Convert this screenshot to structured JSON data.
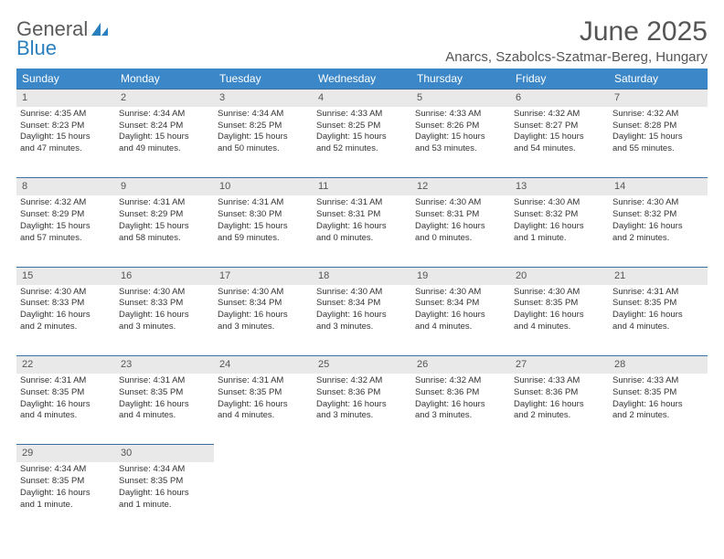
{
  "logo": {
    "text1": "General",
    "text2": "Blue"
  },
  "title": "June 2025",
  "location": "Anarcs, Szabolcs-Szatmar-Bereg, Hungary",
  "colors": {
    "header_bg": "#3b87c8",
    "header_text": "#ffffff",
    "daynum_bg": "#e9e9e9",
    "border": "#3b6f9e",
    "text": "#333333",
    "title_text": "#555555",
    "logo_gray": "#5a5a5a",
    "logo_blue": "#2a7fbf",
    "background": "#ffffff"
  },
  "fonts": {
    "title_size_pt": 22,
    "location_size_pt": 11,
    "header_size_pt": 9,
    "cell_size_pt": 7,
    "daynum_size_pt": 8
  },
  "weekdays": [
    "Sunday",
    "Monday",
    "Tuesday",
    "Wednesday",
    "Thursday",
    "Friday",
    "Saturday"
  ],
  "weeks": [
    [
      {
        "day": "1",
        "sunrise": "Sunrise: 4:35 AM",
        "sunset": "Sunset: 8:23 PM",
        "daylight1": "Daylight: 15 hours",
        "daylight2": "and 47 minutes."
      },
      {
        "day": "2",
        "sunrise": "Sunrise: 4:34 AM",
        "sunset": "Sunset: 8:24 PM",
        "daylight1": "Daylight: 15 hours",
        "daylight2": "and 49 minutes."
      },
      {
        "day": "3",
        "sunrise": "Sunrise: 4:34 AM",
        "sunset": "Sunset: 8:25 PM",
        "daylight1": "Daylight: 15 hours",
        "daylight2": "and 50 minutes."
      },
      {
        "day": "4",
        "sunrise": "Sunrise: 4:33 AM",
        "sunset": "Sunset: 8:25 PM",
        "daylight1": "Daylight: 15 hours",
        "daylight2": "and 52 minutes."
      },
      {
        "day": "5",
        "sunrise": "Sunrise: 4:33 AM",
        "sunset": "Sunset: 8:26 PM",
        "daylight1": "Daylight: 15 hours",
        "daylight2": "and 53 minutes."
      },
      {
        "day": "6",
        "sunrise": "Sunrise: 4:32 AM",
        "sunset": "Sunset: 8:27 PM",
        "daylight1": "Daylight: 15 hours",
        "daylight2": "and 54 minutes."
      },
      {
        "day": "7",
        "sunrise": "Sunrise: 4:32 AM",
        "sunset": "Sunset: 8:28 PM",
        "daylight1": "Daylight: 15 hours",
        "daylight2": "and 55 minutes."
      }
    ],
    [
      {
        "day": "8",
        "sunrise": "Sunrise: 4:32 AM",
        "sunset": "Sunset: 8:29 PM",
        "daylight1": "Daylight: 15 hours",
        "daylight2": "and 57 minutes."
      },
      {
        "day": "9",
        "sunrise": "Sunrise: 4:31 AM",
        "sunset": "Sunset: 8:29 PM",
        "daylight1": "Daylight: 15 hours",
        "daylight2": "and 58 minutes."
      },
      {
        "day": "10",
        "sunrise": "Sunrise: 4:31 AM",
        "sunset": "Sunset: 8:30 PM",
        "daylight1": "Daylight: 15 hours",
        "daylight2": "and 59 minutes."
      },
      {
        "day": "11",
        "sunrise": "Sunrise: 4:31 AM",
        "sunset": "Sunset: 8:31 PM",
        "daylight1": "Daylight: 16 hours",
        "daylight2": "and 0 minutes."
      },
      {
        "day": "12",
        "sunrise": "Sunrise: 4:30 AM",
        "sunset": "Sunset: 8:31 PM",
        "daylight1": "Daylight: 16 hours",
        "daylight2": "and 0 minutes."
      },
      {
        "day": "13",
        "sunrise": "Sunrise: 4:30 AM",
        "sunset": "Sunset: 8:32 PM",
        "daylight1": "Daylight: 16 hours",
        "daylight2": "and 1 minute."
      },
      {
        "day": "14",
        "sunrise": "Sunrise: 4:30 AM",
        "sunset": "Sunset: 8:32 PM",
        "daylight1": "Daylight: 16 hours",
        "daylight2": "and 2 minutes."
      }
    ],
    [
      {
        "day": "15",
        "sunrise": "Sunrise: 4:30 AM",
        "sunset": "Sunset: 8:33 PM",
        "daylight1": "Daylight: 16 hours",
        "daylight2": "and 2 minutes."
      },
      {
        "day": "16",
        "sunrise": "Sunrise: 4:30 AM",
        "sunset": "Sunset: 8:33 PM",
        "daylight1": "Daylight: 16 hours",
        "daylight2": "and 3 minutes."
      },
      {
        "day": "17",
        "sunrise": "Sunrise: 4:30 AM",
        "sunset": "Sunset: 8:34 PM",
        "daylight1": "Daylight: 16 hours",
        "daylight2": "and 3 minutes."
      },
      {
        "day": "18",
        "sunrise": "Sunrise: 4:30 AM",
        "sunset": "Sunset: 8:34 PM",
        "daylight1": "Daylight: 16 hours",
        "daylight2": "and 3 minutes."
      },
      {
        "day": "19",
        "sunrise": "Sunrise: 4:30 AM",
        "sunset": "Sunset: 8:34 PM",
        "daylight1": "Daylight: 16 hours",
        "daylight2": "and 4 minutes."
      },
      {
        "day": "20",
        "sunrise": "Sunrise: 4:30 AM",
        "sunset": "Sunset: 8:35 PM",
        "daylight1": "Daylight: 16 hours",
        "daylight2": "and 4 minutes."
      },
      {
        "day": "21",
        "sunrise": "Sunrise: 4:31 AM",
        "sunset": "Sunset: 8:35 PM",
        "daylight1": "Daylight: 16 hours",
        "daylight2": "and 4 minutes."
      }
    ],
    [
      {
        "day": "22",
        "sunrise": "Sunrise: 4:31 AM",
        "sunset": "Sunset: 8:35 PM",
        "daylight1": "Daylight: 16 hours",
        "daylight2": "and 4 minutes."
      },
      {
        "day": "23",
        "sunrise": "Sunrise: 4:31 AM",
        "sunset": "Sunset: 8:35 PM",
        "daylight1": "Daylight: 16 hours",
        "daylight2": "and 4 minutes."
      },
      {
        "day": "24",
        "sunrise": "Sunrise: 4:31 AM",
        "sunset": "Sunset: 8:35 PM",
        "daylight1": "Daylight: 16 hours",
        "daylight2": "and 4 minutes."
      },
      {
        "day": "25",
        "sunrise": "Sunrise: 4:32 AM",
        "sunset": "Sunset: 8:36 PM",
        "daylight1": "Daylight: 16 hours",
        "daylight2": "and 3 minutes."
      },
      {
        "day": "26",
        "sunrise": "Sunrise: 4:32 AM",
        "sunset": "Sunset: 8:36 PM",
        "daylight1": "Daylight: 16 hours",
        "daylight2": "and 3 minutes."
      },
      {
        "day": "27",
        "sunrise": "Sunrise: 4:33 AM",
        "sunset": "Sunset: 8:36 PM",
        "daylight1": "Daylight: 16 hours",
        "daylight2": "and 2 minutes."
      },
      {
        "day": "28",
        "sunrise": "Sunrise: 4:33 AM",
        "sunset": "Sunset: 8:35 PM",
        "daylight1": "Daylight: 16 hours",
        "daylight2": "and 2 minutes."
      }
    ],
    [
      {
        "day": "29",
        "sunrise": "Sunrise: 4:34 AM",
        "sunset": "Sunset: 8:35 PM",
        "daylight1": "Daylight: 16 hours",
        "daylight2": "and 1 minute."
      },
      {
        "day": "30",
        "sunrise": "Sunrise: 4:34 AM",
        "sunset": "Sunset: 8:35 PM",
        "daylight1": "Daylight: 16 hours",
        "daylight2": "and 1 minute."
      },
      null,
      null,
      null,
      null,
      null
    ]
  ]
}
